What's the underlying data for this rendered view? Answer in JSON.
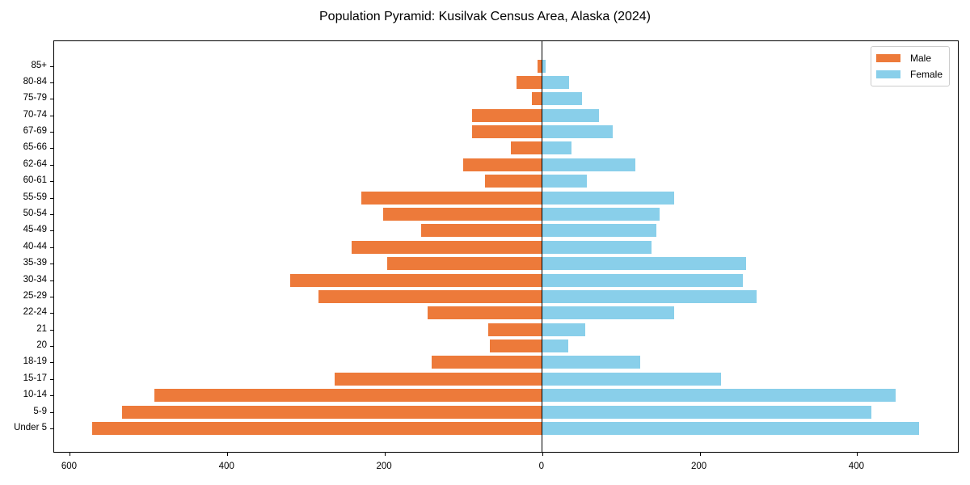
{
  "chart_data": {
    "type": "bar",
    "orientation": "horizontal",
    "title": "Population Pyramid: Kusilvak Census Area, Alaska (2024)",
    "xlabel": "",
    "ylabel": "",
    "xlim": [
      -620,
      530
    ],
    "x_ticks": [
      -600,
      -400,
      -200,
      0,
      200,
      400
    ],
    "x_tick_labels": [
      "600",
      "400",
      "200",
      "0",
      "200",
      "400"
    ],
    "grid": false,
    "legend_position": "upper right",
    "categories": [
      "Under 5",
      "5-9",
      "10-14",
      "15-17",
      "18-19",
      "20",
      "21",
      "22-24",
      "25-29",
      "30-34",
      "35-39",
      "40-44",
      "45-49",
      "50-54",
      "55-59",
      "60-61",
      "62-64",
      "65-66",
      "67-69",
      "70-74",
      "75-79",
      "80-84",
      "85+"
    ],
    "series": [
      {
        "name": "Male",
        "color": "#ED7A3A",
        "values": [
          572,
          534,
          493,
          264,
          141,
          67,
          69,
          146,
          284,
          320,
          197,
          242,
          154,
          202,
          230,
          73,
          100,
          40,
          89,
          89,
          13,
          33,
          6
        ]
      },
      {
        "name": "Female",
        "color": "#89CFEA",
        "values": [
          479,
          418,
          449,
          227,
          124,
          33,
          55,
          168,
          272,
          255,
          259,
          139,
          145,
          149,
          168,
          57,
          118,
          37,
          90,
          72,
          51,
          34,
          4
        ]
      }
    ]
  },
  "legend": {
    "male_label": "Male",
    "female_label": "Female"
  }
}
